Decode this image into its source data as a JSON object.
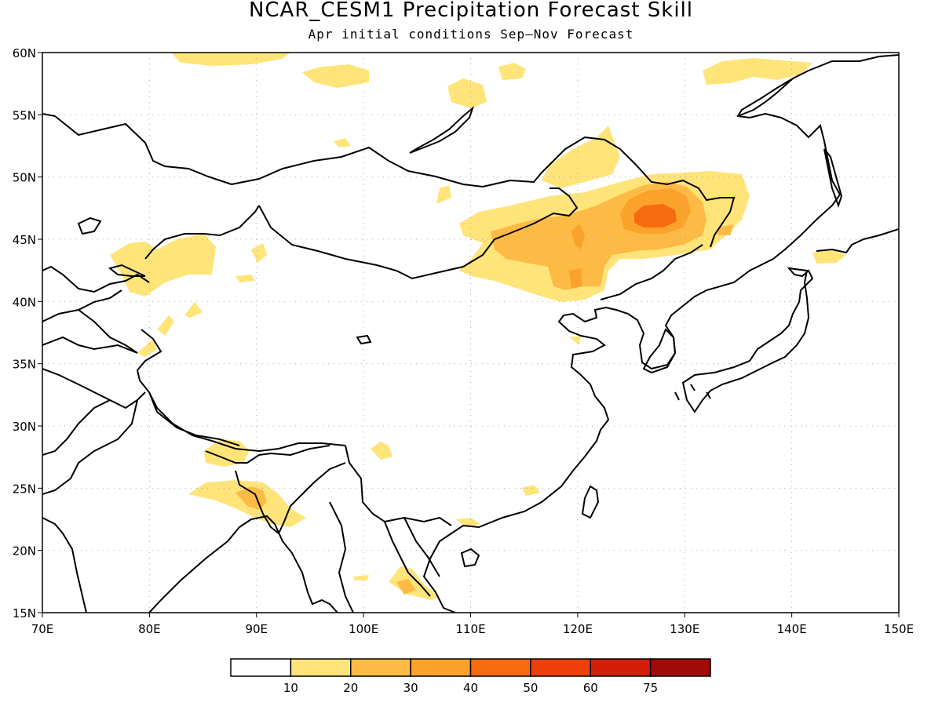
{
  "title": "NCAR_CESM1 Precipitation Forecast Skill",
  "subtitle": "Apr initial conditions  Sep–Nov Forecast",
  "map": {
    "lon_range": [
      70,
      150
    ],
    "lat_range": [
      15,
      60
    ],
    "x_ticks": [
      "70E",
      "80E",
      "90E",
      "100E",
      "110E",
      "120E",
      "130E",
      "140E",
      "150E"
    ],
    "y_ticks": [
      "15N",
      "20N",
      "25N",
      "30N",
      "35N",
      "40N",
      "45N",
      "50N",
      "55N",
      "60N"
    ],
    "grid": true,
    "grid_style": "dotted"
  },
  "legend": {
    "thresholds": [
      "10",
      "20",
      "30",
      "40",
      "50",
      "60",
      "75"
    ],
    "colors": [
      "#ffffff",
      "#ffe47a",
      "#fdbb45",
      "#fba22a",
      "#f76b10",
      "#ec3f0a",
      "#d21d09",
      "#a00b07"
    ]
  }
}
